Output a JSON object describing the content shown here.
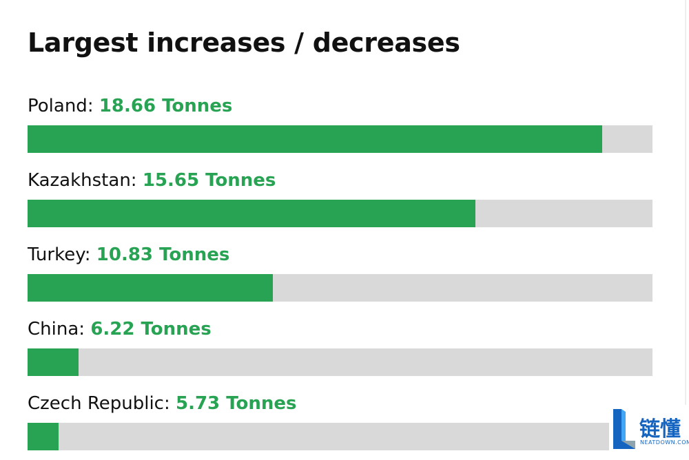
{
  "title": "Largest increases / decreases",
  "colors": {
    "bar_fill": "#27a353",
    "bar_track": "#d9d9d9",
    "value_text": "#27a353"
  },
  "chart_data": {
    "type": "bar",
    "orientation": "horizontal",
    "title": "Largest increases / decreases",
    "categories": [
      "Poland",
      "Kazakhstan",
      "Turkey",
      "China",
      "Czech Republic"
    ],
    "values": [
      18.66,
      15.65,
      10.83,
      6.22,
      5.73
    ],
    "value_labels": [
      "18.66 Tonnes",
      "15.65 Tonnes",
      "10.83 Tonnes",
      "6.22 Tonnes",
      "5.73 Tonnes"
    ],
    "unit": "Tonnes",
    "grid": false,
    "legend": "none"
  },
  "watermark": {
    "chinese": "链懂",
    "english": "NEATDOWN.COM"
  }
}
